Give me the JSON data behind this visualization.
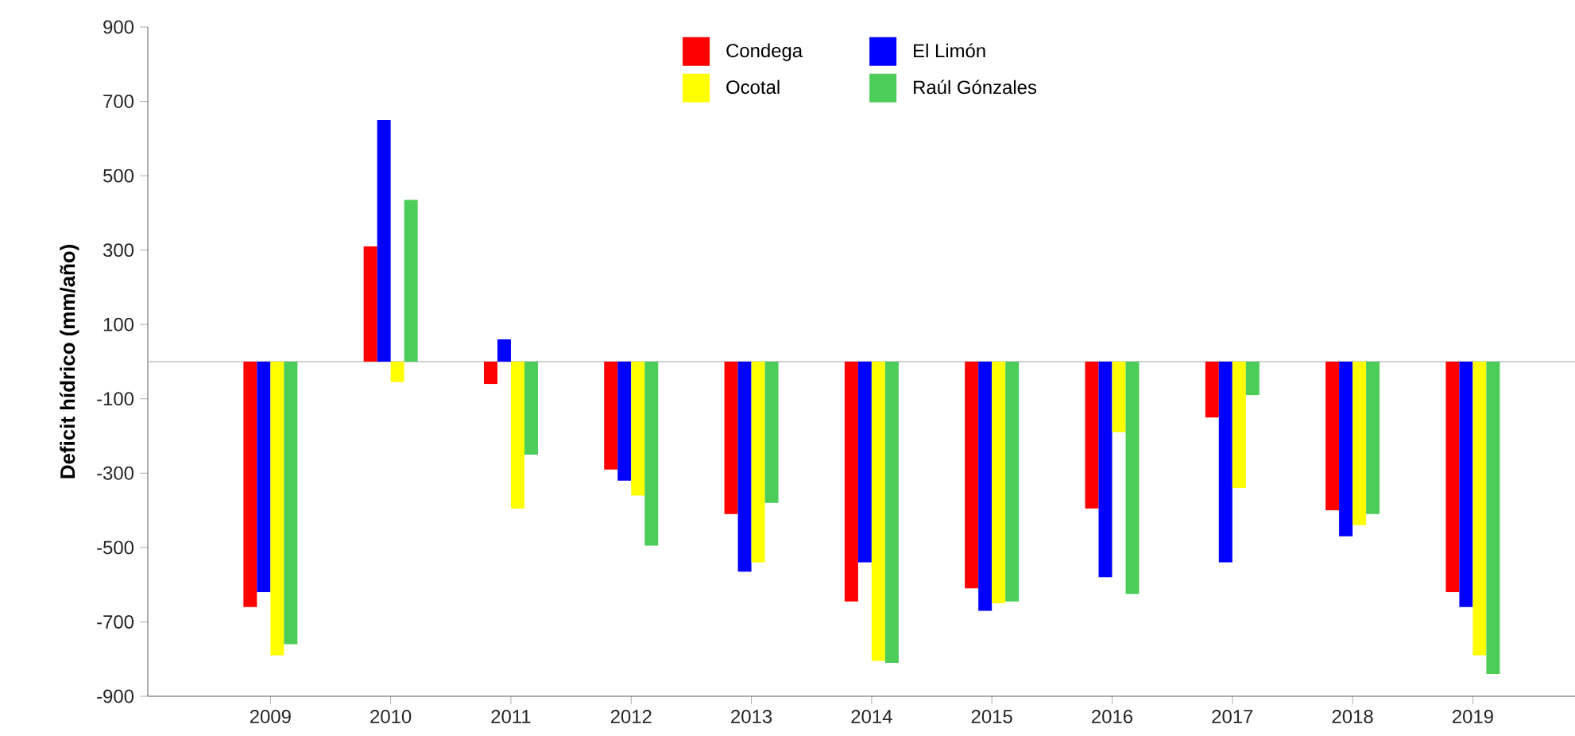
{
  "chart_data": {
    "type": "bar",
    "ylabel": "Deficit hídrico (mm/año)",
    "categories": [
      "2009",
      "2010",
      "2011",
      "2012",
      "2013",
      "2014",
      "2015",
      "2016",
      "2017",
      "2018",
      "2019"
    ],
    "series": [
      {
        "name": "Condega",
        "color": "#ff0000",
        "values": [
          -660,
          310,
          -60,
          -290,
          -410,
          -645,
          -610,
          -395,
          -150,
          -400,
          -620
        ]
      },
      {
        "name": "El Limón",
        "color": "#0000ff",
        "values": [
          -620,
          650,
          60,
          -320,
          -565,
          -540,
          -670,
          -580,
          -540,
          -470,
          -660
        ]
      },
      {
        "name": "Ocotal",
        "color": "#ffff00",
        "values": [
          -790,
          -55,
          -395,
          -360,
          -540,
          -805,
          -650,
          -190,
          -340,
          -440,
          -790
        ]
      },
      {
        "name": "Raúl Gónzales",
        "color": "#4ccd5a",
        "values": [
          -760,
          435,
          -250,
          -495,
          -380,
          -810,
          -645,
          -625,
          -90,
          -410,
          -840
        ]
      }
    ],
    "ylim": [
      -900,
      900
    ],
    "yticks": [
      -900,
      -700,
      -500,
      -300,
      -100,
      100,
      300,
      500,
      700,
      900
    ],
    "ref_lines": [
      {
        "axis": "y",
        "value": 0,
        "color": "#c0c0c0"
      }
    ],
    "legend": "top"
  }
}
